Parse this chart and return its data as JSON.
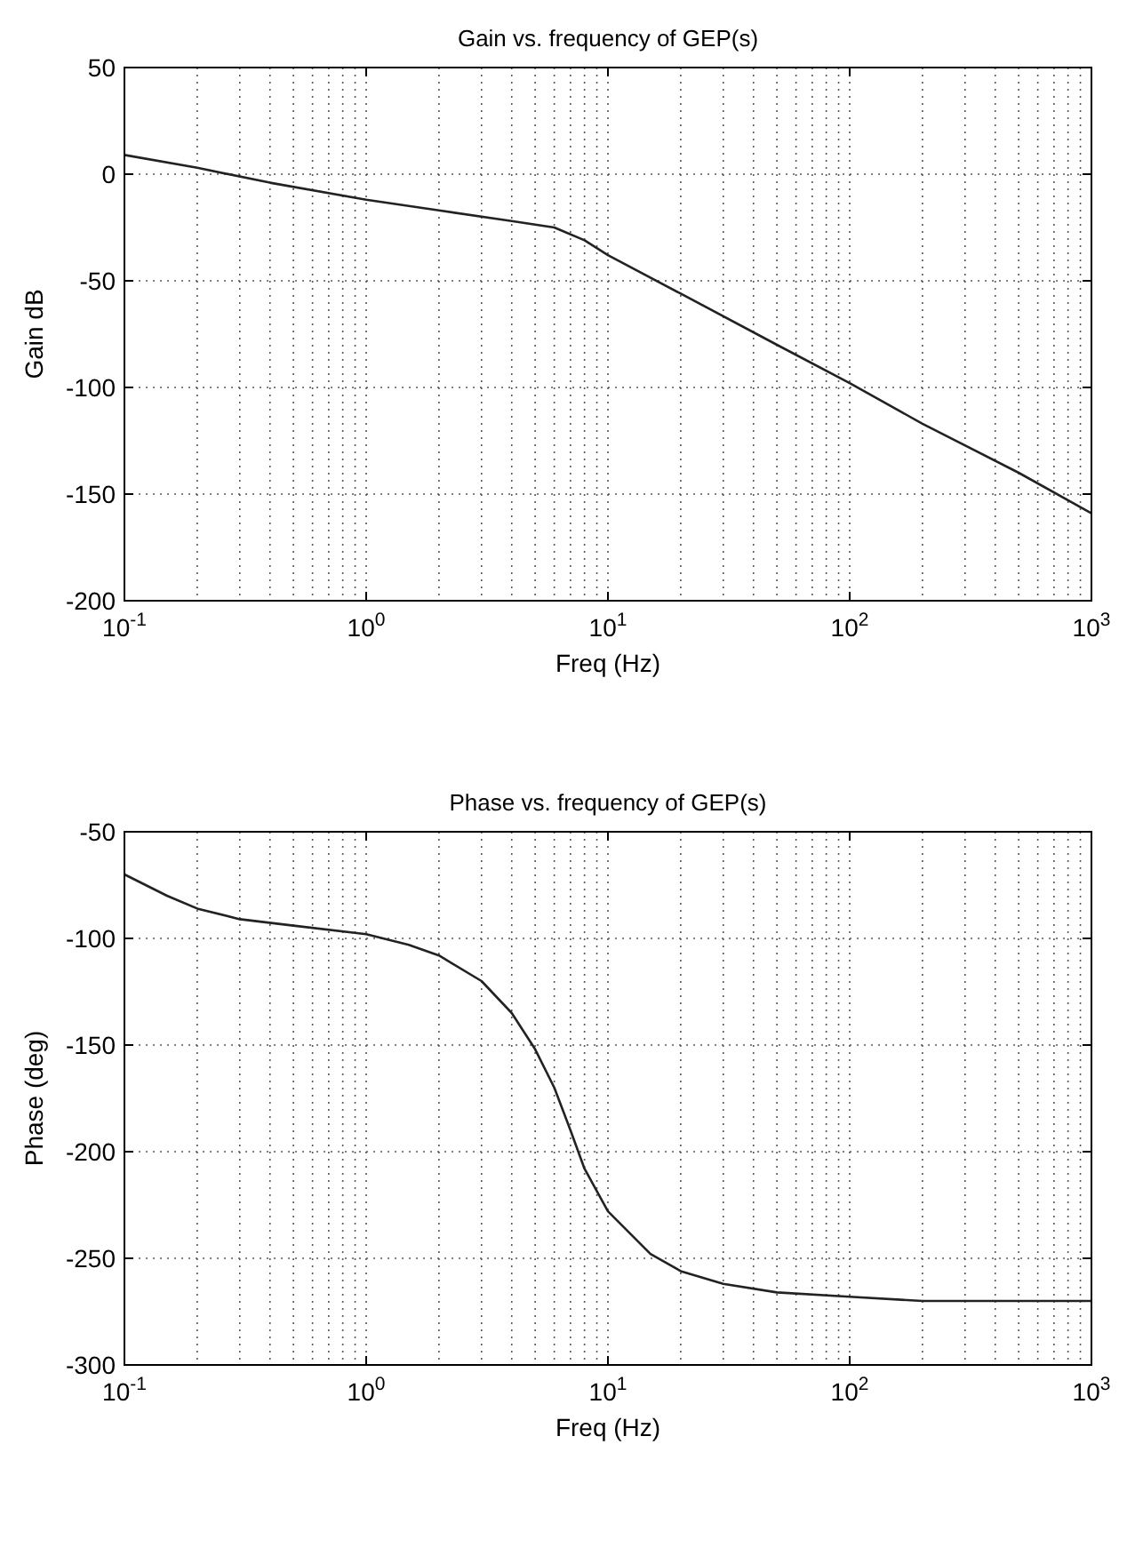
{
  "chart_data": [
    {
      "type": "line",
      "title": "Gain vs. frequency of GEP(s)",
      "xlabel": "Freq (Hz)",
      "ylabel": "Gain dB",
      "log": "x",
      "grid": true,
      "xlim": [
        0.1,
        1000
      ],
      "xticks": [
        {
          "value": 0.1,
          "label": "10$^{-1}$"
        },
        {
          "value": 1,
          "label": "10$^{0}$"
        },
        {
          "value": 10,
          "label": "10$^{1}$"
        },
        {
          "value": 100,
          "label": "10$^{2}$"
        },
        {
          "value": 1000,
          "label": "10$^{3}$"
        }
      ],
      "ylim": [
        -200,
        50
      ],
      "yticks": [
        -200,
        -150,
        -100,
        -50,
        0,
        50
      ],
      "series": [
        {
          "color": "#222222",
          "x": [
            0.1,
            0.2,
            0.4,
            1,
            2,
            4,
            6,
            8,
            10,
            20,
            50,
            100,
            200,
            500,
            1000
          ],
          "values": [
            9,
            3,
            -4,
            -12,
            -17,
            -22,
            -25,
            -31,
            -38,
            -56,
            -80,
            -98,
            -117,
            -140,
            -159
          ]
        }
      ]
    },
    {
      "type": "line",
      "title": "Phase vs. frequency of GEP(s)",
      "xlabel": "Freq (Hz)",
      "ylabel": "Phase (deg)",
      "log": "x",
      "grid": true,
      "xlim": [
        0.1,
        1000
      ],
      "xticks": [
        {
          "value": 0.1,
          "label": "10$^{-1}$"
        },
        {
          "value": 1,
          "label": "10$^{0}$"
        },
        {
          "value": 10,
          "label": "10$^{1}$"
        },
        {
          "value": 100,
          "label": "10$^{2}$"
        },
        {
          "value": 1000,
          "label": "10$^{3}$"
        }
      ],
      "ylim": [
        -300,
        -50
      ],
      "yticks": [
        -300,
        -250,
        -200,
        -150,
        -100,
        -50
      ],
      "series": [
        {
          "color": "#222222",
          "x": [
            0.1,
            0.15,
            0.2,
            0.3,
            0.5,
            1,
            1.5,
            2,
            3,
            4,
            5,
            6,
            7,
            8,
            10,
            15,
            20,
            30,
            50,
            100,
            200,
            1000
          ],
          "values": [
            -70,
            -80,
            -86,
            -91,
            -94,
            -98,
            -103,
            -108,
            -120,
            -135,
            -152,
            -170,
            -190,
            -208,
            -228,
            -248,
            -256,
            -262,
            -266,
            -268,
            -270,
            -270
          ]
        }
      ]
    }
  ]
}
